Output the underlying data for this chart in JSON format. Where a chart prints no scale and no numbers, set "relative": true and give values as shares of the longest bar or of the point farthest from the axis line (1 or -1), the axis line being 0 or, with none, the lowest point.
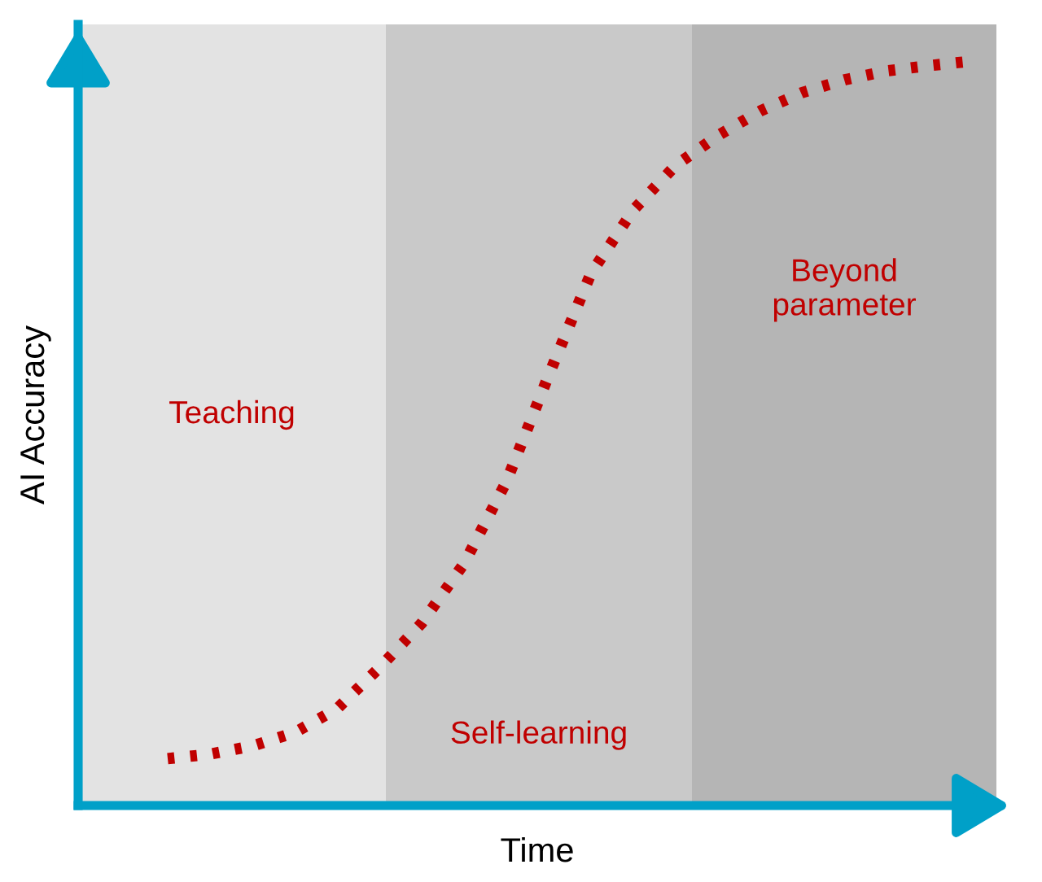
{
  "chart_data": {
    "type": "line",
    "relative": true,
    "xlabel": "Time",
    "ylabel": "AI Accuracy",
    "categories": [
      null,
      null,
      null,
      null,
      null,
      null,
      null,
      null,
      null,
      null,
      null,
      null,
      null,
      null,
      null,
      null,
      null,
      null,
      null,
      null
    ],
    "series": [
      {
        "color": "#c00000",
        "values": [
          0.063,
          0.069,
          0.08,
          0.098,
          0.13,
          0.185,
          0.245,
          0.325,
          0.435,
          0.578,
          0.715,
          0.8,
          0.86,
          0.9,
          0.933,
          0.958,
          0.975,
          0.987,
          0.994,
          1
        ]
      }
    ],
    "line_style": "dotted",
    "marker": "none",
    "legend": false,
    "annotations": [
      "Teaching",
      "Self-learning",
      "Beyond\nparameter"
    ]
  }
}
